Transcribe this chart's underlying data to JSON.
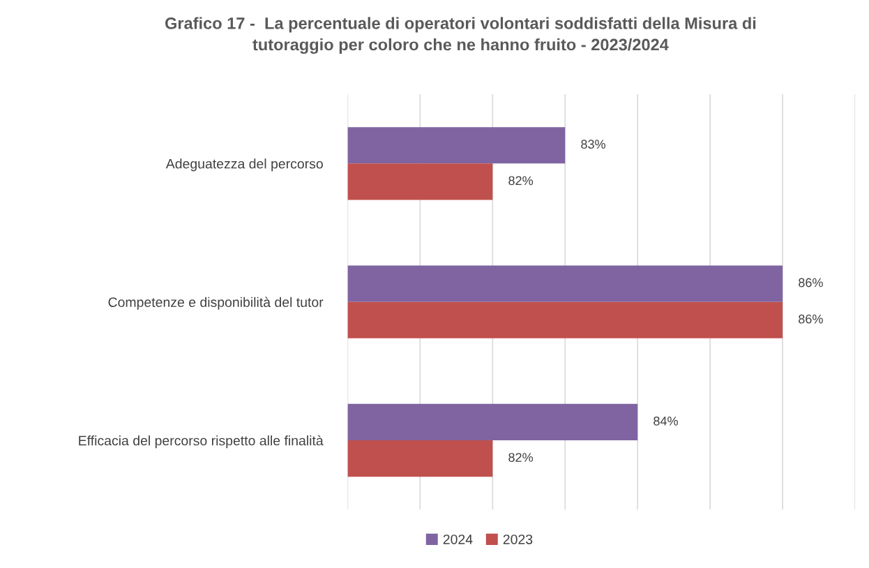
{
  "chart_data": {
    "type": "bar",
    "orientation": "horizontal",
    "title": "Grafico 17 -  La percentuale di operatori volontari soddisfatti della Misura di\ntutoraggio per coloro che ne hanno fruito - 2023/2024",
    "categories": [
      "Adeguatezza del percorso",
      "Competenze e disponibilità del tutor",
      "Efficacia del percorso rispetto alle finalità"
    ],
    "series": [
      {
        "name": "2024",
        "color": "#8064a2",
        "values": [
          83,
          86,
          84
        ],
        "value_labels": [
          "83%",
          "86%",
          "84%"
        ]
      },
      {
        "name": "2023",
        "color": "#c0504d",
        "values": [
          82,
          86,
          82
        ],
        "value_labels": [
          "82%",
          "86%",
          "82%"
        ]
      }
    ],
    "xlim": [
      80,
      87
    ],
    "xticks": [
      {
        "value": 80,
        "label": null
      },
      {
        "value": 81,
        "label": null
      },
      {
        "value": 82,
        "label": null
      },
      {
        "value": 83,
        "label": null
      },
      {
        "value": 84,
        "label": null
      },
      {
        "value": 85,
        "label": null
      },
      {
        "value": 86,
        "label": null
      },
      {
        "value": 87,
        "label": null
      }
    ],
    "tick_labels": "y",
    "grid": "x",
    "legend": "bottom"
  }
}
